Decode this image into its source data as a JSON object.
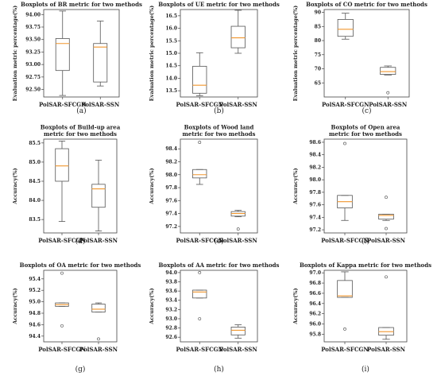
{
  "chart_data": [
    {
      "type": "boxplot",
      "sub": "(a)",
      "title": [
        "Boxplots of BR metric for two methods"
      ],
      "ylabel": "Evaluation metric percentage(%)",
      "categories": [
        "PolSAR-SFCGN",
        "PolSAR-SSN"
      ],
      "ylim": [
        92.35,
        94.1
      ],
      "ticks": [
        92.5,
        92.75,
        93.0,
        93.25,
        93.5,
        93.75,
        94.0
      ],
      "tick_labels": [
        "92.50",
        "92.75",
        "93.00",
        "93.25",
        "93.50",
        "93.75",
        "94.00"
      ],
      "boxes": [
        {
          "min": 92.38,
          "q1": 92.88,
          "median": 93.42,
          "q3": 93.52,
          "max": 94.07,
          "outliers": []
        },
        {
          "min": 92.57,
          "q1": 92.65,
          "median": 93.35,
          "q3": 93.42,
          "max": 93.87,
          "outliers": []
        }
      ]
    },
    {
      "type": "boxplot",
      "sub": "(b)",
      "title": [
        "Boxplots of UE metric for two methods"
      ],
      "ylabel": "Evaluation metric percentage(%)",
      "categories": [
        "PolSAR-SFCGN",
        "PolSAR-SSN"
      ],
      "ylim": [
        13.25,
        16.75
      ],
      "ticks": [
        13.5,
        14.0,
        14.5,
        15.0,
        15.5,
        16.0,
        16.5
      ],
      "tick_labels": [
        "13.5",
        "14.0",
        "14.5",
        "15.0",
        "15.5",
        "16.0",
        "16.5"
      ],
      "boxes": [
        {
          "min": 13.3,
          "q1": 13.4,
          "median": 13.72,
          "q3": 14.48,
          "max": 15.02,
          "outliers": []
        },
        {
          "min": 15.0,
          "q1": 15.22,
          "median": 15.62,
          "q3": 16.08,
          "max": 16.72,
          "outliers": []
        }
      ]
    },
    {
      "type": "boxplot",
      "sub": "(c)",
      "title": [
        "Boxplots of CO metric for two methods"
      ],
      "ylabel": "Evaluation metric percentage(%)",
      "categories": [
        "PolSAR-SFCGN",
        "PolSAR-SSN"
      ],
      "ylim": [
        60,
        91
      ],
      "ticks": [
        65,
        70,
        75,
        80,
        85,
        90
      ],
      "tick_labels": [
        "65",
        "70",
        "75",
        "80",
        "85",
        "90"
      ],
      "boxes": [
        {
          "min": 80.5,
          "q1": 81.5,
          "median": 84.0,
          "q3": 87.5,
          "max": 89.7,
          "outliers": []
        },
        {
          "min": 67.8,
          "q1": 68.0,
          "median": 69.0,
          "q3": 70.5,
          "max": 71.0,
          "outliers": [
            61.5
          ]
        }
      ]
    },
    {
      "type": "boxplot",
      "sub": "(d)",
      "title": [
        "Boxplots of Build-up area",
        "metric for two methods"
      ],
      "ylabel": "Accuracy(%)",
      "categories": [
        "PolSAR-SFCGN",
        "PolSAR-SSN"
      ],
      "ylim": [
        83.15,
        85.6
      ],
      "ticks": [
        83.5,
        84.0,
        84.5,
        85.0,
        85.5
      ],
      "tick_labels": [
        "83.5",
        "84.0",
        "84.5",
        "85.0",
        "85.5"
      ],
      "boxes": [
        {
          "min": 83.45,
          "q1": 84.5,
          "median": 84.9,
          "q3": 85.35,
          "max": 85.55,
          "outliers": []
        },
        {
          "min": 83.2,
          "q1": 83.82,
          "median": 84.3,
          "q3": 84.42,
          "max": 85.05,
          "outliers": []
        }
      ]
    },
    {
      "type": "boxplot",
      "sub": "(e)",
      "title": [
        "Boxplots of Wood land",
        "metric for two methods"
      ],
      "ylabel": "Accuracy(%)",
      "categories": [
        "PolSAR-SFCGN",
        "PolSAR-SSN"
      ],
      "ylim": [
        97.1,
        98.55
      ],
      "ticks": [
        97.2,
        97.4,
        97.6,
        97.8,
        98.0,
        98.2,
        98.4
      ],
      "tick_labels": [
        "97.2",
        "97.4",
        "97.6",
        "97.8",
        "98.0",
        "98.2",
        "98.4"
      ],
      "boxes": [
        {
          "min": 97.85,
          "q1": 97.95,
          "median": 98.0,
          "q3": 98.08,
          "max": 98.08,
          "outliers": [
            98.5
          ]
        },
        {
          "min": 97.35,
          "q1": 97.36,
          "median": 97.4,
          "q3": 97.43,
          "max": 97.45,
          "outliers": [
            97.16
          ]
        }
      ]
    },
    {
      "type": "boxplot",
      "sub": "(f)",
      "title": [
        "Boxplots of Open area",
        "metric for two methods"
      ],
      "ylabel": "Accuracy(%)",
      "categories": [
        "PolSAR-SFCGN",
        "PolSAR-SSN"
      ],
      "ylim": [
        97.15,
        98.65
      ],
      "ticks": [
        97.2,
        97.4,
        97.6,
        97.8,
        98.0,
        98.2,
        98.4,
        98.6
      ],
      "tick_labels": [
        "97.2",
        "97.4",
        "97.6",
        "97.8",
        "98.0",
        "98.2",
        "98.4",
        "98.6"
      ],
      "boxes": [
        {
          "min": 97.35,
          "q1": 97.55,
          "median": 97.65,
          "q3": 97.75,
          "max": 97.75,
          "outliers": [
            98.58
          ]
        },
        {
          "min": 97.35,
          "q1": 97.37,
          "median": 97.43,
          "q3": 97.45,
          "max": 97.45,
          "outliers": [
            97.72,
            97.22
          ]
        }
      ]
    },
    {
      "type": "boxplot",
      "sub": "(g)",
      "title": [
        "Boxplots of OA metric for two methods"
      ],
      "ylabel": "Accuracy(%)",
      "categories": [
        "PolSAR-SFCGN",
        "PolSAR-SSN"
      ],
      "ylim": [
        94.3,
        95.55
      ],
      "ticks": [
        94.4,
        94.6,
        94.8,
        95.0,
        95.2,
        95.4
      ],
      "tick_labels": [
        "94.4",
        "94.6",
        "94.8",
        "95.0",
        "95.2",
        "95.4"
      ],
      "boxes": [
        {
          "min": 94.92,
          "q1": 94.92,
          "median": 94.95,
          "q3": 94.98,
          "max": 94.98,
          "outliers": [
            95.5,
            94.58
          ]
        },
        {
          "min": 94.82,
          "q1": 94.82,
          "median": 94.87,
          "q3": 94.96,
          "max": 94.98,
          "outliers": [
            94.35
          ]
        }
      ]
    },
    {
      "type": "boxplot",
      "sub": "(h)",
      "title": [
        "Boxplots of AA metric for two methods"
      ],
      "ylabel": "Accuracy(%)",
      "categories": [
        "PolSAR-SFCGN",
        "PolSAR-SSN"
      ],
      "ylim": [
        92.5,
        94.05
      ],
      "ticks": [
        92.6,
        92.8,
        93.0,
        93.2,
        93.4,
        93.6,
        93.8,
        94.0
      ],
      "tick_labels": [
        "92.6",
        "92.8",
        "93.0",
        "93.2",
        "93.4",
        "93.6",
        "93.8",
        "94.0"
      ],
      "boxes": [
        {
          "min": 93.45,
          "q1": 93.45,
          "median": 93.58,
          "q3": 93.62,
          "max": 93.62,
          "outliers": [
            94.0,
            93.0
          ]
        },
        {
          "min": 92.58,
          "q1": 92.65,
          "median": 92.75,
          "q3": 92.82,
          "max": 92.87,
          "outliers": []
        }
      ]
    },
    {
      "type": "boxplot",
      "sub": "(i)",
      "title": [
        "Boxplots of Kappa metric for two methods"
      ],
      "ylabel": "Accuracy(%)",
      "categories": [
        "PolSAR-SFCGN",
        "PolSAR-SSN"
      ],
      "ylim": [
        95.65,
        97.05
      ],
      "ticks": [
        95.8,
        96.0,
        96.2,
        96.4,
        96.6,
        96.8,
        97.0
      ],
      "tick_labels": [
        "95.8",
        "96.0",
        "96.2",
        "96.4",
        "96.6",
        "96.8",
        "97.0"
      ],
      "boxes": [
        {
          "min": 96.52,
          "q1": 96.52,
          "median": 96.55,
          "q3": 96.85,
          "max": 97.02,
          "outliers": [
            95.9
          ]
        },
        {
          "min": 95.7,
          "q1": 95.78,
          "median": 95.85,
          "q3": 95.93,
          "max": 95.93,
          "outliers": [
            96.92
          ]
        }
      ]
    }
  ]
}
